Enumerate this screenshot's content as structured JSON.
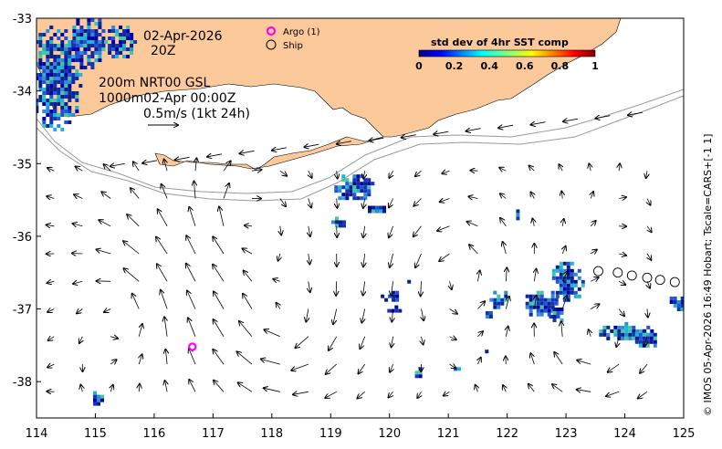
{
  "map": {
    "lon_range": [
      114,
      125
    ],
    "lat_range": [
      -38.5,
      -33
    ],
    "lon_ticks": [
      {
        "value": 114,
        "label": "114"
      },
      {
        "value": 115,
        "label": "115"
      },
      {
        "value": 116,
        "label": "116"
      },
      {
        "value": 117,
        "label": "117"
      },
      {
        "value": 118,
        "label": "118"
      },
      {
        "value": 119,
        "label": "119"
      },
      {
        "value": 120,
        "label": "120"
      },
      {
        "value": 121,
        "label": "121"
      },
      {
        "value": 122,
        "label": "122"
      },
      {
        "value": 123,
        "label": "123"
      },
      {
        "value": 124,
        "label": "124"
      },
      {
        "value": 125,
        "label": "125"
      }
    ],
    "lat_ticks": [
      {
        "value": -33,
        "label": "-33"
      },
      {
        "value": -34,
        "label": "-34"
      },
      {
        "value": -35,
        "label": "-35"
      },
      {
        "value": -36,
        "label": "-36"
      },
      {
        "value": -37,
        "label": "-37"
      },
      {
        "value": -38,
        "label": "-38"
      }
    ],
    "land_color": "#fcc99b",
    "contour_color": "#9a9a9a"
  },
  "annotations": {
    "date": "02-Apr-2026",
    "hour": "20Z",
    "contours": "200m  NRT00 GSL",
    "contours2": "1000m02-Apr 00:00Z",
    "scale": "0.5m/s (1kt 24h)"
  },
  "legend": {
    "argo": "Argo (1)",
    "ship": "Ship",
    "argo_color": "#ff00ff"
  },
  "colorbar": {
    "title": "std dev of 4hr SST comp",
    "ticks": [
      "0",
      "0.2",
      "0.4",
      "0.6",
      "0.8",
      "1"
    ]
  },
  "argo_positions": [
    {
      "lon": 116.65,
      "lat": -37.52
    }
  ],
  "ship_positions": [
    {
      "lon": 123.55,
      "lat": -36.48
    },
    {
      "lon": 123.88,
      "lat": -36.5
    },
    {
      "lon": 124.12,
      "lat": -36.54
    },
    {
      "lon": 124.38,
      "lat": -36.57
    },
    {
      "lon": 124.6,
      "lat": -36.6
    },
    {
      "lon": 124.85,
      "lat": -36.63
    }
  ],
  "sst_patches": [
    {
      "lon": 114.3,
      "lat": -33.8,
      "rlon": 0.45,
      "rlat": 0.75
    },
    {
      "lon": 114.85,
      "lat": -33.3,
      "rlon": 0.3,
      "rlat": 0.4
    },
    {
      "lon": 115.4,
      "lat": -33.3,
      "rlon": 0.25,
      "rlat": 0.25
    },
    {
      "lon": 119.35,
      "lat": -35.3,
      "rlon": 0.35,
      "rlat": 0.2
    },
    {
      "lon": 119.1,
      "lat": -35.8,
      "rlon": 0.15,
      "rlat": 0.07
    },
    {
      "lon": 119.75,
      "lat": -35.6,
      "rlon": 0.18,
      "rlat": 0.07
    },
    {
      "lon": 122.15,
      "lat": -35.7,
      "rlon": 0.06,
      "rlat": 0.07
    },
    {
      "lon": 123.0,
      "lat": -36.6,
      "rlon": 0.3,
      "rlat": 0.3
    },
    {
      "lon": 122.55,
      "lat": -36.9,
      "rlon": 0.3,
      "rlat": 0.2
    },
    {
      "lon": 122.8,
      "lat": -37.05,
      "rlon": 0.15,
      "rlat": 0.12
    },
    {
      "lon": 121.85,
      "lat": -36.85,
      "rlon": 0.15,
      "rlat": 0.15
    },
    {
      "lon": 121.65,
      "lat": -37.05,
      "rlon": 0.08,
      "rlat": 0.07
    },
    {
      "lon": 120.0,
      "lat": -36.8,
      "rlon": 0.15,
      "rlat": 0.1
    },
    {
      "lon": 120.05,
      "lat": -37.0,
      "rlon": 0.15,
      "rlat": 0.05
    },
    {
      "lon": 124.0,
      "lat": -37.3,
      "rlon": 0.5,
      "rlat": 0.12
    },
    {
      "lon": 124.3,
      "lat": -37.4,
      "rlon": 0.25,
      "rlat": 0.12
    },
    {
      "lon": 124.85,
      "lat": -36.9,
      "rlon": 0.15,
      "rlat": 0.12
    },
    {
      "lon": 120.45,
      "lat": -37.85,
      "rlon": 0.08,
      "rlat": 0.1
    },
    {
      "lon": 121.15,
      "lat": -37.8,
      "rlon": 0.06,
      "rlat": 0.05
    },
    {
      "lon": 115.0,
      "lat": -38.2,
      "rlon": 0.1,
      "rlat": 0.12
    },
    {
      "lon": 121.6,
      "lat": -37.55,
      "rlon": 0.04,
      "rlat": 0.04
    },
    {
      "lon": 120.3,
      "lat": -36.6,
      "rlon": 0.06,
      "rlat": 0.05
    }
  ],
  "credit": "© IMOS 05-Apr-2026 16:49 Hobart; Tscale=CARS+[-1 1]"
}
